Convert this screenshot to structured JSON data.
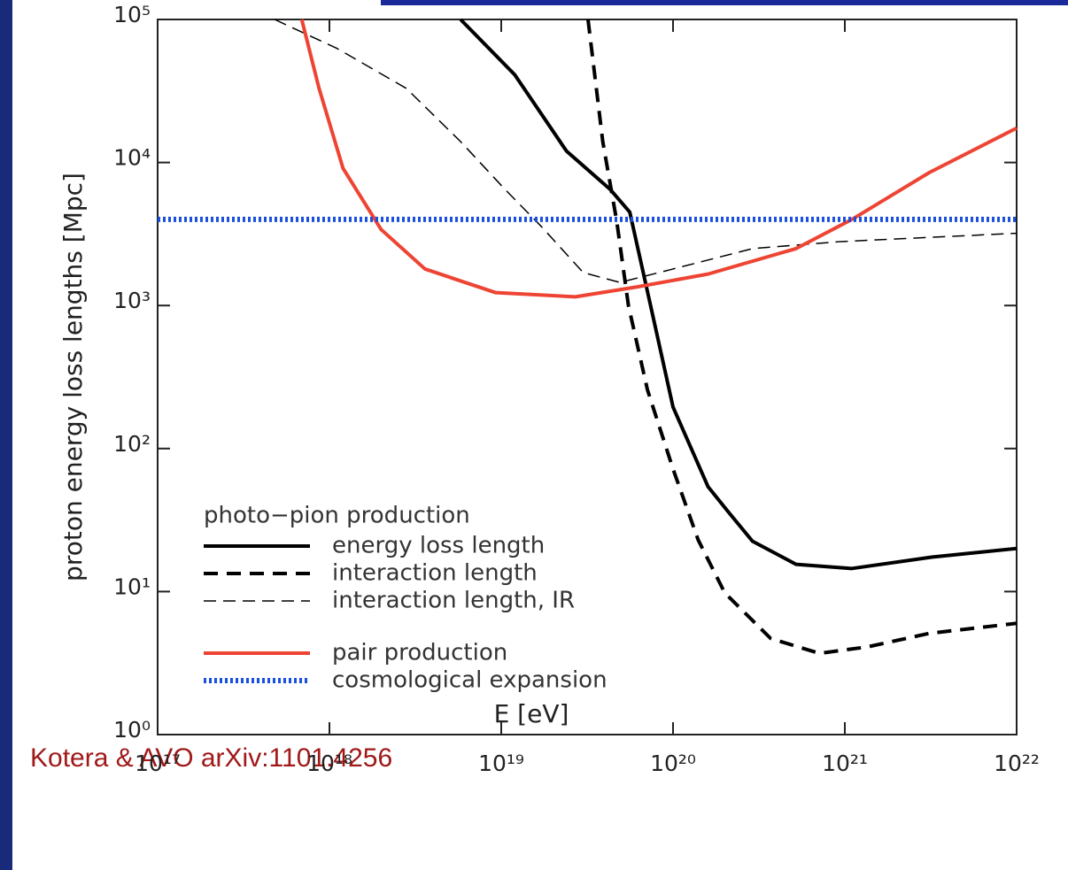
{
  "chart_data": {
    "type": "line",
    "xlabel": "E [eV]",
    "ylabel": "proton energy loss lengths [Mpc]",
    "xscale": "log",
    "yscale": "log",
    "xlim": [
      1e+17,
      1e+22
    ],
    "ylim": [
      1,
      100000
    ],
    "xticks": [
      {
        "value": 1e+17,
        "label": "10¹⁷"
      },
      {
        "value": 1e+18,
        "label": "10¹⁸"
      },
      {
        "value": 1e+19,
        "label": "10¹⁹"
      },
      {
        "value": 1e+20,
        "label": "10²⁰"
      },
      {
        "value": 1e+21,
        "label": "10²¹"
      },
      {
        "value": 1e+22,
        "label": "10²²"
      }
    ],
    "yticks": [
      {
        "value": 1,
        "label": "10⁰"
      },
      {
        "value": 10,
        "label": "10¹"
      },
      {
        "value": 100,
        "label": "10²"
      },
      {
        "value": 1000,
        "label": "10³"
      },
      {
        "value": 10000,
        "label": "10⁴"
      },
      {
        "value": 100000,
        "label": "10⁵"
      }
    ],
    "legend": "lower left",
    "legend_title": "photo−pion production",
    "series": [
      {
        "name": "energy loss length",
        "color": "#000000",
        "style": "solid",
        "x": [
          5.8e+18,
          1.2e+19,
          2.4e+19,
          4.3e+19,
          5.6e+19,
          7.4e+19,
          1e+20,
          1.6e+20,
          2.1e+20,
          2.9e+20,
          5.2e+20,
          1.1e+21,
          3.2e+21,
          1e+22
        ],
        "values": [
          100000,
          41000,
          12000,
          6500,
          4500,
          1000,
          195,
          54,
          36,
          22.5,
          15.5,
          14.5,
          17.4,
          20
        ]
      },
      {
        "name": "interaction length",
        "color": "#000000",
        "style": "dashed",
        "x": [
          3.2e+19,
          3.9e+19,
          4.7e+19,
          5.5e+19,
          7.1e+19,
          1e+20,
          1.4e+20,
          2e+20,
          3.7e+20,
          7.1e+20,
          1.35e+21,
          3.1e+21,
          1e+22
        ],
        "values": [
          100000,
          14000,
          3900,
          1000,
          257,
          72,
          23,
          9.8,
          4.7,
          3.7,
          4.1,
          5.1,
          6.0
        ]
      },
      {
        "name": "interaction length, IR",
        "color": "#000000",
        "style": "thin-dashed",
        "x": [
          4.8e+17,
          1.1e+18,
          2.8e+18,
          5.8e+18,
          1.05e+19,
          1.7e+19,
          3e+19,
          4.9e+19,
          1e+20,
          2.9e+20,
          9.5e+20,
          1e+22
        ],
        "values": [
          100000,
          63000,
          33000,
          14000,
          6500,
          3600,
          1700,
          1450,
          1800,
          2500,
          2800,
          3200
        ]
      },
      {
        "name": "pair production",
        "color": "#ee4433",
        "style": "solid",
        "x": [
          6.9e+17,
          8.7e+17,
          1.2e+18,
          2e+18,
          3.6e+18,
          9.3e+18,
          2.7e+19,
          6.2e+19,
          1.6e+20,
          5.2e+20,
          1.1e+21,
          3.1e+21,
          1e+22
        ],
        "values": [
          100000,
          33000,
          9100,
          3400,
          1800,
          1230,
          1150,
          1350,
          1660,
          2500,
          4000,
          8500,
          17400
        ]
      },
      {
        "name": "cosmological expansion",
        "color": "#1a4fe0",
        "style": "dotted",
        "x": [
          1e+17,
          1e+22
        ],
        "values": [
          4000,
          4000
        ]
      }
    ]
  },
  "caption": "Kotera & AVO arXiv:1101.4256"
}
